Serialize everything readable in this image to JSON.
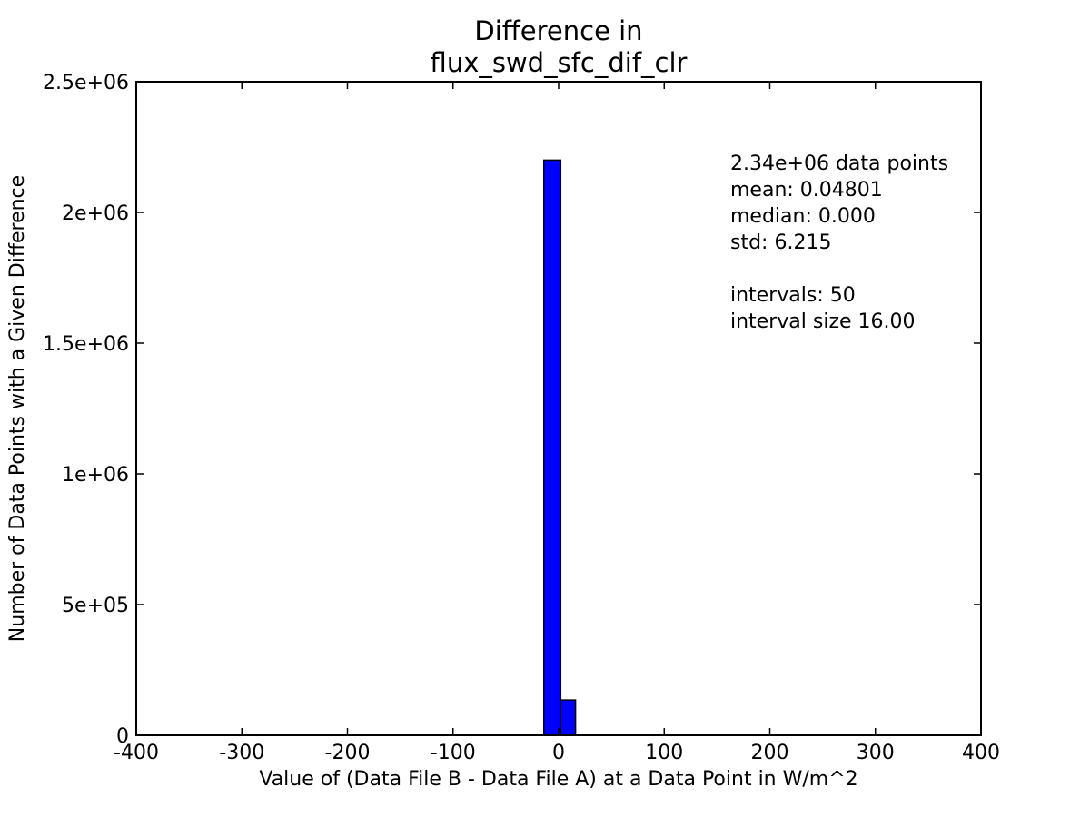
{
  "chart_data": {
    "type": "bar",
    "title_line1": "Difference in",
    "title_line2": "flux_swd_sfc_dif_clr",
    "xlabel": "Value of (Data File B - Data File A) at a Data Point in W/m^2",
    "ylabel": "Number of Data Points with a Given Difference",
    "xlim": [
      -400,
      400
    ],
    "ylim": [
      0,
      2500000
    ],
    "x_ticks": [
      -400,
      -300,
      -200,
      -100,
      0,
      100,
      200,
      300,
      400
    ],
    "x_tick_labels": [
      "-400",
      "-300",
      "-200",
      "-100",
      "0",
      "100",
      "200",
      "300",
      "400"
    ],
    "y_ticks": [
      0,
      500000,
      1000000,
      1500000,
      2000000,
      2500000
    ],
    "y_tick_labels": [
      "0",
      "5e+05",
      "1e+06",
      "1.5e+06",
      "2e+06",
      "2.5e+06"
    ],
    "grid": false,
    "bar_color": "#0000ff",
    "bars": [
      {
        "x_start": -14,
        "x_end": 2,
        "value": 2200000
      },
      {
        "x_start": 2,
        "x_end": 16,
        "value": 135000
      }
    ],
    "stats_lines": [
      "2.34e+06 data points",
      "mean: 0.04801",
      "median: 0.000",
      "std: 6.215",
      "",
      "intervals: 50",
      "interval size 16.00"
    ]
  }
}
